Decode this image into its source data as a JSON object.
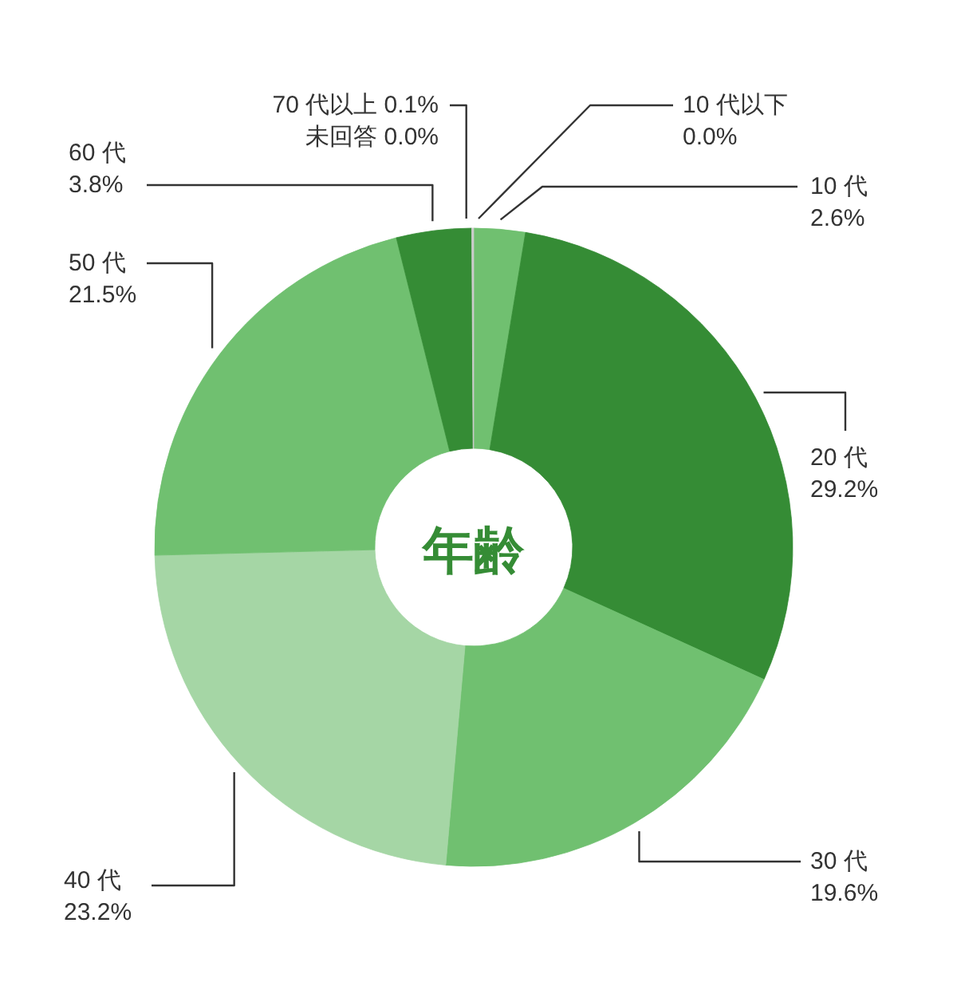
{
  "chart_data": {
    "type": "donut",
    "title": "年齢",
    "categories": [
      "10 代以下",
      "10 代",
      "20 代",
      "30 代",
      "40 代",
      "50 代",
      "60 代",
      "70 代以上",
      "未回答"
    ],
    "values": [
      0.0,
      2.6,
      29.2,
      19.6,
      23.2,
      21.5,
      3.8,
      0.1,
      0.0
    ],
    "colors": [
      null,
      "#70c070",
      "#358c35",
      "#70c070",
      "#a5d6a5",
      "#70c070",
      "#358c35",
      "#cccccc",
      null
    ],
    "value_labels": [
      "0.0%",
      "2.6%",
      "29.2%",
      "19.6%",
      "23.2%",
      "21.5%",
      "3.8%",
      "0.1%",
      "0.0%"
    ]
  }
}
